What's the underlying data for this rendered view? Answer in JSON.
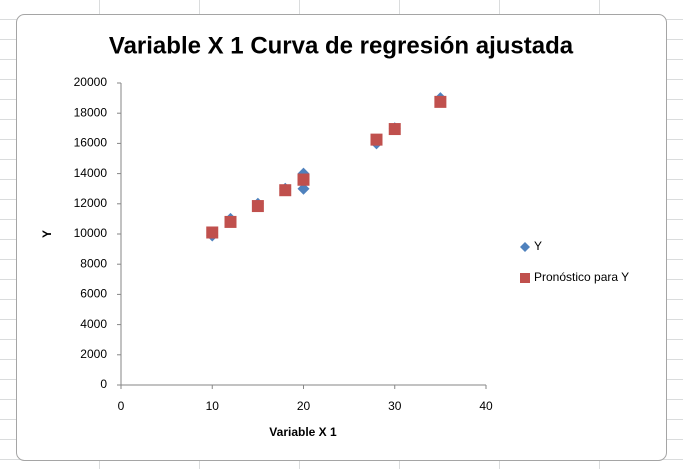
{
  "chart_data": {
    "type": "scatter",
    "title": "Variable X 1 Curva de regresión ajustada",
    "x_label": "Variable X 1",
    "y_label": "Y",
    "series": [
      {
        "name": "Y",
        "color": "#4f81bd",
        "marker": "diamond",
        "x": [
          10,
          12,
          15,
          18,
          20,
          20,
          28,
          30,
          35
        ],
        "values": [
          9900,
          11000,
          12000,
          13000,
          14000,
          13000,
          16000,
          17000,
          19000
        ]
      },
      {
        "name": "Pronóstico para Y",
        "color": "#c0504d",
        "marker": "square",
        "x": [
          10,
          12,
          15,
          18,
          20,
          20,
          28,
          30,
          35
        ],
        "values": [
          10100,
          10800,
          11850,
          12900,
          13600,
          13600,
          16250,
          16950,
          18750
        ]
      }
    ],
    "xlim": [
      0,
      40
    ],
    "xticks": [
      0,
      10,
      20,
      30,
      40
    ],
    "ylim": [
      0,
      20000
    ],
    "yticks": [
      0,
      2000,
      4000,
      6000,
      8000,
      10000,
      12000,
      14000,
      16000,
      18000,
      20000
    ],
    "grid": false,
    "legend": "right"
  }
}
